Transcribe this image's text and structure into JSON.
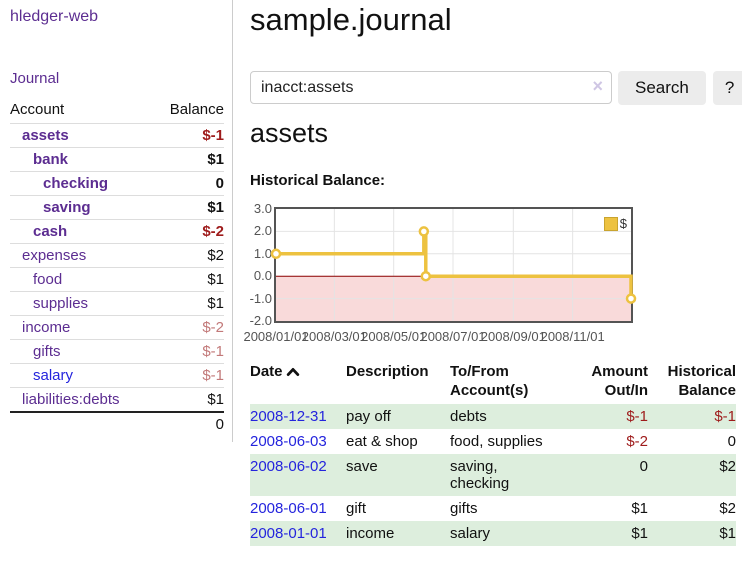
{
  "colors": {
    "link_purple": "#5c2d91",
    "link_blue": "#2424dd",
    "negative_strong": "#9e1b1b",
    "negative_muted": "#c27979",
    "row_stripe_green": "#ddeedd",
    "series_yellow": "#edc240",
    "negative_region_pink": "#f9dada",
    "zero_line_red": "#8b0000"
  },
  "sidebar": {
    "brand": "hledger-web",
    "journal_link": "Journal",
    "header": {
      "account": "Account",
      "balance": "Balance"
    },
    "accounts": [
      {
        "name": "assets",
        "balance": "$-1"
      },
      {
        "name": "bank",
        "balance": "$1"
      },
      {
        "name": "checking",
        "balance": "0"
      },
      {
        "name": "saving",
        "balance": "$1"
      },
      {
        "name": "cash",
        "balance": "$-2"
      },
      {
        "name": "expenses",
        "balance": "$2"
      },
      {
        "name": "food",
        "balance": "$1"
      },
      {
        "name": "supplies",
        "balance": "$1"
      },
      {
        "name": "income",
        "balance": "$-2"
      },
      {
        "name": "gifts",
        "balance": "$-1"
      },
      {
        "name": "salary",
        "balance": "$-1"
      },
      {
        "name": "liabilities:debts",
        "balance": "$1"
      }
    ],
    "total_balance": "0"
  },
  "main": {
    "title": "sample.journal",
    "search": {
      "value": "inacct:assets",
      "clear_icon": "×",
      "search_button": "Search",
      "help_button": "?"
    },
    "heading": "assets",
    "chart_title": "Historical Balance:"
  },
  "chart_data": {
    "type": "line",
    "title": "Historical Balance:",
    "series": [
      {
        "name": "$",
        "color": "#edc240",
        "steps": true,
        "points": [
          [
            "2008-01-01",
            1
          ],
          [
            "2008-06-01",
            2
          ],
          [
            "2008-06-03",
            0
          ],
          [
            "2008-12-31",
            -1
          ]
        ]
      }
    ],
    "x_range": [
      "2008-01-01",
      "2008-12-31"
    ],
    "ylim": [
      -2,
      3
    ],
    "y_ticks": [
      3,
      2,
      1,
      0,
      -1,
      -2
    ],
    "y_tick_labels": [
      "3.0",
      "2.0",
      "1.0",
      "0.0",
      "-1.0",
      "-2.0"
    ],
    "x_tick_dates": [
      "2008-01-01",
      "2008-03-01",
      "2008-05-01",
      "2008-07-01",
      "2008-09-01",
      "2008-11-01"
    ],
    "x_tick_labels": [
      "2008/01/01",
      "2008/03/01",
      "2008/05/01",
      "2008/07/01",
      "2008/09/01",
      "2008/11/01"
    ],
    "legend": {
      "label": "$",
      "position": "top-right"
    },
    "grid": true,
    "negative_region_color": "#f9dada",
    "zero_line_color": "#8b0000"
  },
  "register": {
    "headers": {
      "date": "Date",
      "description": "Description",
      "accounts": "To/From Account(s)",
      "amount": "Amount Out/In",
      "balance": "Historical Balance"
    },
    "sort_icon": "chevron-up",
    "rows": [
      {
        "date": "2008-12-31",
        "description": "pay off",
        "accounts": "debts",
        "amount": "$-1",
        "balance": "$-1"
      },
      {
        "date": "2008-06-03",
        "description": "eat & shop",
        "accounts": "food, supplies",
        "amount": "$-2",
        "balance": "0"
      },
      {
        "date": "2008-06-02",
        "description": "save",
        "accounts": "saving,\nchecking",
        "amount": "0",
        "balance": "$2"
      },
      {
        "date": "2008-06-01",
        "description": "gift",
        "accounts": "gifts",
        "amount": "$1",
        "balance": "$2"
      },
      {
        "date": "2008-01-01",
        "description": "income",
        "accounts": "salary",
        "amount": "$1",
        "balance": "$1"
      }
    ]
  }
}
